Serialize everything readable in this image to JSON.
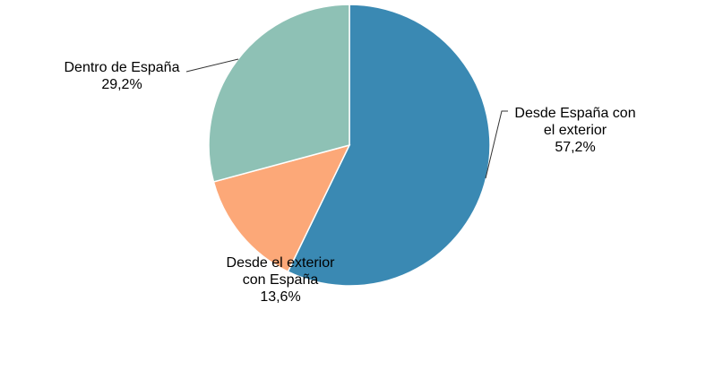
{
  "chart_data": {
    "type": "pie",
    "start_angle_deg": 0,
    "direction": "clockwise",
    "slices": [
      {
        "label_lines": [
          "Desde España con",
          "el exterior"
        ],
        "value": 57.2,
        "value_label": "57,2%",
        "color": "#3a89b3"
      },
      {
        "label_lines": [
          "Desde el exterior",
          "con España"
        ],
        "value": 13.6,
        "value_label": "13,6%",
        "color": "#fca878"
      },
      {
        "label_lines": [
          "Dentro de España"
        ],
        "value": 29.2,
        "value_label": "29,2%",
        "color": "#8ec1b5"
      }
    ],
    "legend": "none"
  }
}
